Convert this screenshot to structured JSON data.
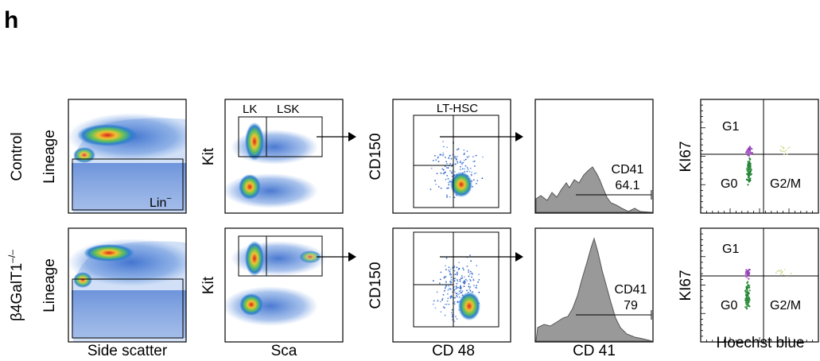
{
  "panel_letter": "h",
  "row_labels": {
    "control": "Control",
    "mutant_prefix": "β4GalT1",
    "mutant_sup": "–/–"
  },
  "chart_data": [
    {
      "type": "scatter",
      "panel": "lineage",
      "xlabel": "Side scatter",
      "ylabel": "Lineage",
      "gates": [
        {
          "label": "Lin",
          "sup": "−",
          "rows": [
            "control"
          ]
        }
      ]
    },
    {
      "type": "scatter",
      "panel": "kit-sca",
      "xlabel": "Sca",
      "ylabel": "Kit",
      "gates": [
        {
          "label": "LK",
          "rows": [
            "control"
          ]
        },
        {
          "label": "LSK",
          "rows": [
            "control"
          ]
        }
      ]
    },
    {
      "type": "scatter",
      "panel": "cd150-cd48",
      "xlabel": "CD 48",
      "ylabel": "CD150",
      "gates": [
        {
          "label": "LT-HSC",
          "rows": [
            "control"
          ]
        }
      ]
    },
    {
      "type": "area",
      "panel": "cd41-histogram",
      "xlabel": "CD 41",
      "gates": [
        {
          "label": "CD41",
          "row": "control",
          "value": 64.1,
          "value_text": "64.1"
        },
        {
          "label": "CD41",
          "row": "mutant",
          "value": 79,
          "value_text": "79"
        }
      ]
    },
    {
      "type": "scatter",
      "panel": "cell-cycle",
      "xlabel": "Hoechst blue",
      "ylabel": "KI67",
      "quadrants": [
        "G1",
        "G0",
        "G2/M"
      ]
    }
  ]
}
